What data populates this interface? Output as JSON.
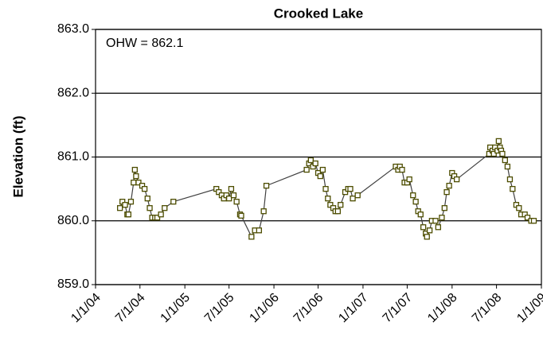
{
  "chart_data": {
    "type": "line",
    "title": "Crooked Lake",
    "ylabel": "Elevation (ft)",
    "annotation": "OHW = 862.1",
    "line_color": "#404040",
    "marker_color": "#4d4d00",
    "grid": true,
    "ylim": [
      859,
      863
    ],
    "yticks": [
      {
        "value": 859,
        "label": "859.0"
      },
      {
        "value": 860,
        "label": "860.0"
      },
      {
        "value": 861,
        "label": "861.0"
      },
      {
        "value": 862,
        "label": "862.0"
      },
      {
        "value": 863,
        "label": "863.0"
      }
    ],
    "xlim": [
      "2004-01-01",
      "2009-01-01"
    ],
    "xticks": [
      {
        "value": "2004-01-01",
        "label": "1/1/04"
      },
      {
        "value": "2004-07-01",
        "label": "7/1/04"
      },
      {
        "value": "2005-01-01",
        "label": "1/1/05"
      },
      {
        "value": "2005-07-01",
        "label": "7/1/05"
      },
      {
        "value": "2006-01-01",
        "label": "1/1/06"
      },
      {
        "value": "2006-07-01",
        "label": "7/1/06"
      },
      {
        "value": "2007-01-01",
        "label": "1/1/07"
      },
      {
        "value": "2007-07-01",
        "label": "7/1/07"
      },
      {
        "value": "2008-01-01",
        "label": "1/1/08"
      },
      {
        "value": "2008-07-01",
        "label": "7/1/08"
      },
      {
        "value": "2009-01-01",
        "label": "1/1/09"
      }
    ],
    "x": [
      "2004-04-10",
      "2004-04-20",
      "2004-05-01",
      "2004-05-10",
      "2004-05-15",
      "2004-05-25",
      "2004-06-05",
      "2004-06-10",
      "2004-06-15",
      "2004-06-25",
      "2004-07-10",
      "2004-07-20",
      "2004-08-01",
      "2004-08-10",
      "2004-08-20",
      "2004-09-01",
      "2004-09-10",
      "2004-09-25",
      "2004-10-10",
      "2004-11-15",
      "2005-05-10",
      "2005-05-20",
      "2005-06-01",
      "2005-06-10",
      "2005-06-20",
      "2005-07-01",
      "2005-07-10",
      "2005-07-20",
      "2005-08-01",
      "2005-08-15",
      "2005-08-20",
      "2005-10-01",
      "2005-10-15",
      "2005-11-01",
      "2005-11-20",
      "2005-12-01",
      "2006-05-15",
      "2006-05-25",
      "2006-06-01",
      "2006-06-10",
      "2006-06-20",
      "2006-07-01",
      "2006-07-10",
      "2006-07-20",
      "2006-08-01",
      "2006-08-10",
      "2006-08-20",
      "2006-09-01",
      "2006-09-10",
      "2006-09-20",
      "2006-10-01",
      "2006-10-20",
      "2006-11-01",
      "2006-11-10",
      "2006-11-20",
      "2006-12-10",
      "2007-05-15",
      "2007-05-25",
      "2007-06-01",
      "2007-06-10",
      "2007-06-20",
      "2007-07-01",
      "2007-07-10",
      "2007-07-25",
      "2007-08-05",
      "2007-08-15",
      "2007-08-25",
      "2007-09-05",
      "2007-09-15",
      "2007-09-20",
      "2007-10-01",
      "2007-10-10",
      "2007-10-25",
      "2007-11-05",
      "2007-11-20",
      "2007-12-01",
      "2007-12-10",
      "2007-12-20",
      "2008-01-01",
      "2008-01-10",
      "2008-01-20",
      "2008-06-01",
      "2008-06-05",
      "2008-06-15",
      "2008-06-20",
      "2008-06-25",
      "2008-07-05",
      "2008-07-10",
      "2008-07-15",
      "2008-07-20",
      "2008-07-25",
      "2008-08-05",
      "2008-08-15",
      "2008-08-25",
      "2008-09-05",
      "2008-09-20",
      "2008-10-01",
      "2008-10-10",
      "2008-10-25",
      "2008-11-05",
      "2008-11-20",
      "2008-12-01"
    ],
    "values": [
      860.2,
      860.3,
      860.25,
      860.1,
      860.1,
      860.3,
      860.6,
      860.8,
      860.7,
      860.6,
      860.55,
      860.5,
      860.35,
      860.2,
      860.05,
      860.05,
      860.05,
      860.1,
      860.2,
      860.3,
      860.5,
      860.45,
      860.4,
      860.35,
      860.4,
      860.35,
      860.5,
      860.4,
      860.3,
      860.1,
      860.08,
      859.75,
      859.85,
      859.85,
      860.15,
      860.55,
      860.8,
      860.9,
      860.95,
      860.85,
      860.9,
      860.75,
      860.7,
      860.8,
      860.5,
      860.35,
      860.25,
      860.2,
      860.15,
      860.15,
      860.25,
      860.45,
      860.5,
      860.5,
      860.35,
      860.4,
      860.85,
      860.8,
      860.85,
      860.8,
      860.6,
      860.6,
      860.65,
      860.4,
      860.3,
      860.15,
      860.1,
      859.9,
      859.8,
      859.75,
      859.85,
      860.0,
      860.0,
      859.9,
      860.05,
      860.2,
      860.45,
      860.55,
      860.75,
      860.7,
      860.65,
      861.05,
      861.15,
      861.1,
      861.05,
      861.15,
      861.1,
      861.25,
      861.15,
      861.1,
      861.05,
      860.95,
      860.85,
      860.65,
      860.5,
      860.25,
      860.2,
      860.1,
      860.1,
      860.05,
      860.0,
      860.0
    ]
  }
}
